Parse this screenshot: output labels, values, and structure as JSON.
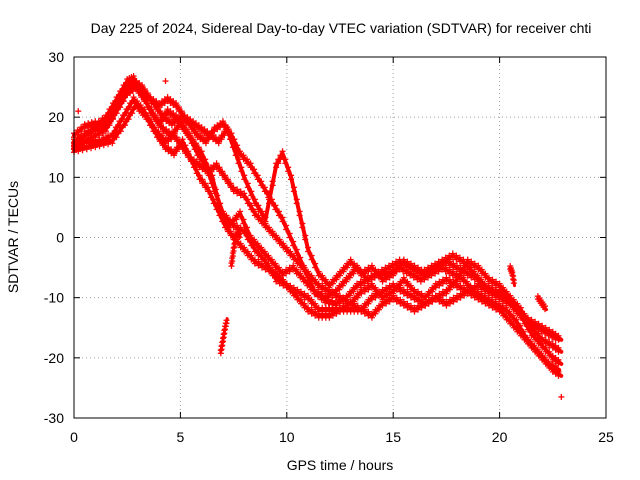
{
  "chart_data": {
    "type": "scatter",
    "title": "Day 225 of 2024, Sidereal Day-to-day VTEC variation (SDTVAR) for receiver chti",
    "xlabel": "GPS time / hours",
    "ylabel": "SDTVAR / TECUs",
    "xlim": [
      0,
      25
    ],
    "ylim": [
      -30,
      30
    ],
    "xticks": [
      0,
      5,
      10,
      15,
      20,
      25
    ],
    "yticks": [
      -30,
      -20,
      -10,
      0,
      10,
      20,
      30
    ],
    "grid": true,
    "marker": "+",
    "color": "#ff0000",
    "series": [
      {
        "name": "trace-1",
        "points": [
          [
            0,
            16
          ],
          [
            0.5,
            17
          ],
          [
            1,
            18.5
          ],
          [
            1.5,
            20
          ],
          [
            2,
            23
          ],
          [
            2.5,
            26
          ],
          [
            2.8,
            26.5
          ],
          [
            3.2,
            24
          ],
          [
            3.6,
            21
          ],
          [
            4,
            19
          ],
          [
            4.4,
            21
          ],
          [
            4.8,
            20
          ],
          [
            5.2,
            18
          ],
          [
            5.6,
            16
          ],
          [
            6,
            14
          ],
          [
            6.5,
            10
          ],
          [
            7,
            3
          ],
          [
            7.3,
            2
          ],
          [
            7.8,
            4
          ],
          [
            8.3,
            0
          ],
          [
            8.8,
            -2
          ],
          [
            9.3,
            -4
          ],
          [
            9.8,
            -6
          ],
          [
            10.3,
            -5
          ],
          [
            10.8,
            -7
          ],
          [
            11.3,
            -9
          ],
          [
            11.8,
            -10.5
          ],
          [
            12.3,
            -11
          ],
          [
            12.8,
            -10
          ],
          [
            13.3,
            -8
          ],
          [
            13.8,
            -7
          ],
          [
            14.3,
            -6
          ],
          [
            14.8,
            -6
          ],
          [
            15.3,
            -5
          ],
          [
            15.8,
            -6
          ],
          [
            16.3,
            -7
          ],
          [
            16.8,
            -6
          ],
          [
            17.3,
            -5
          ],
          [
            17.8,
            -6
          ],
          [
            18.3,
            -7
          ],
          [
            18.8,
            -9
          ],
          [
            19.3,
            -10
          ],
          [
            19.8,
            -11
          ],
          [
            20.3,
            -12
          ],
          [
            20.8,
            -14
          ],
          [
            21.3,
            -17
          ],
          [
            21.8,
            -19
          ],
          [
            22.3,
            -21
          ],
          [
            22.8,
            -22
          ]
        ]
      },
      {
        "name": "trace-2",
        "points": [
          [
            0,
            15
          ],
          [
            0.5,
            16
          ],
          [
            1,
            17
          ],
          [
            1.5,
            18
          ],
          [
            2,
            21
          ],
          [
            2.5,
            24
          ],
          [
            2.9,
            25
          ],
          [
            3.3,
            23
          ],
          [
            3.8,
            20
          ],
          [
            4.2,
            18
          ],
          [
            4.6,
            17
          ],
          [
            5,
            19
          ],
          [
            5.4,
            17
          ],
          [
            5.8,
            14
          ],
          [
            6.2,
            12
          ],
          [
            6.6,
            8
          ],
          [
            7,
            4
          ],
          [
            7.5,
            2
          ],
          [
            8,
            1
          ],
          [
            8.5,
            -2
          ],
          [
            9,
            -4
          ],
          [
            9.5,
            -7
          ],
          [
            10,
            -8
          ],
          [
            10.5,
            -9
          ],
          [
            11,
            -10
          ],
          [
            11.5,
            -12
          ],
          [
            12,
            -12
          ],
          [
            12.5,
            -12
          ],
          [
            13,
            -11
          ],
          [
            13.5,
            -9
          ],
          [
            14,
            -8
          ],
          [
            14.5,
            -10
          ],
          [
            15,
            -9
          ],
          [
            15.5,
            -7
          ],
          [
            16,
            -9
          ],
          [
            16.5,
            -10
          ],
          [
            17,
            -8
          ],
          [
            17.5,
            -7
          ],
          [
            18,
            -8
          ],
          [
            18.5,
            -9
          ],
          [
            19,
            -10
          ],
          [
            19.5,
            -11
          ],
          [
            20,
            -12
          ],
          [
            20.5,
            -14
          ],
          [
            21,
            -16
          ],
          [
            21.5,
            -18
          ],
          [
            22,
            -20
          ],
          [
            22.5,
            -22
          ],
          [
            22.9,
            -23
          ]
        ]
      },
      {
        "name": "trace-3",
        "points": [
          [
            0,
            17
          ],
          [
            0.5,
            18.5
          ],
          [
            1,
            19
          ],
          [
            1.5,
            19
          ],
          [
            2,
            22
          ],
          [
            2.5,
            25
          ],
          [
            2.8,
            26
          ],
          [
            3.2,
            25
          ],
          [
            3.6,
            23
          ],
          [
            4,
            22
          ],
          [
            4.4,
            23
          ],
          [
            4.8,
            22
          ],
          [
            5.2,
            20
          ],
          [
            5.6,
            19
          ],
          [
            6,
            18
          ],
          [
            6.4,
            17
          ],
          [
            6.8,
            16
          ],
          [
            7.2,
            18
          ],
          [
            7.6,
            14
          ],
          [
            8,
            10
          ],
          [
            8.5,
            6
          ],
          [
            9,
            3
          ],
          [
            9.5,
            12
          ],
          [
            9.8,
            14
          ],
          [
            10.2,
            10
          ],
          [
            10.6,
            4
          ],
          [
            11,
            -2
          ],
          [
            11.5,
            -6
          ],
          [
            12,
            -8
          ],
          [
            12.5,
            -6
          ],
          [
            13,
            -4
          ],
          [
            13.5,
            -6
          ],
          [
            14,
            -5
          ],
          [
            14.5,
            -7
          ],
          [
            15,
            -6
          ],
          [
            15.5,
            -4
          ],
          [
            16,
            -5
          ],
          [
            16.5,
            -6
          ],
          [
            17,
            -5
          ],
          [
            17.5,
            -4
          ],
          [
            18,
            -5
          ],
          [
            18.5,
            -6
          ],
          [
            19,
            -7
          ],
          [
            19.5,
            -9
          ],
          [
            20,
            -9
          ],
          [
            20.5,
            -11
          ],
          [
            21,
            -13
          ],
          [
            21.5,
            -14
          ],
          [
            22,
            -15
          ],
          [
            22.5,
            -16
          ],
          [
            22.9,
            -17
          ]
        ]
      },
      {
        "name": "trace-4",
        "points": [
          [
            0,
            15
          ],
          [
            0.6,
            16
          ],
          [
            1.2,
            16
          ],
          [
            1.8,
            17
          ],
          [
            2.3,
            20
          ],
          [
            2.8,
            23
          ],
          [
            3.3,
            21
          ],
          [
            3.8,
            18
          ],
          [
            4.3,
            16
          ],
          [
            4.7,
            17
          ],
          [
            5.1,
            15
          ],
          [
            5.5,
            13
          ],
          [
            5.9,
            12
          ],
          [
            6.3,
            11
          ],
          [
            6.7,
            12
          ],
          [
            7.1,
            10
          ],
          [
            7.5,
            8
          ],
          [
            8,
            7
          ],
          [
            8.5,
            4
          ],
          [
            9,
            2
          ],
          [
            9.5,
            0
          ],
          [
            10,
            -2
          ],
          [
            10.5,
            -4
          ],
          [
            11,
            -6
          ],
          [
            11.5,
            -8
          ],
          [
            12,
            -9
          ],
          [
            12.5,
            -10
          ],
          [
            13,
            -11
          ],
          [
            13.5,
            -12
          ],
          [
            14,
            -10
          ],
          [
            14.5,
            -9
          ],
          [
            15,
            -8
          ],
          [
            15.5,
            -9
          ],
          [
            16,
            -10
          ],
          [
            16.5,
            -11
          ],
          [
            17,
            -10
          ],
          [
            17.5,
            -9
          ],
          [
            18,
            -7
          ],
          [
            18.5,
            -4
          ],
          [
            19,
            -5
          ],
          [
            19.5,
            -7
          ],
          [
            20,
            -8
          ],
          [
            20.5,
            -10
          ],
          [
            21,
            -12
          ],
          [
            21.5,
            -15
          ],
          [
            22,
            -17
          ],
          [
            22.5,
            -18
          ],
          [
            22.9,
            -19
          ]
        ]
      },
      {
        "name": "trace-5",
        "points": [
          [
            0,
            14.5
          ],
          [
            0.6,
            15
          ],
          [
            1.2,
            15.5
          ],
          [
            1.8,
            16
          ],
          [
            2.4,
            19
          ],
          [
            2.9,
            22
          ],
          [
            3.4,
            20
          ],
          [
            3.9,
            17
          ],
          [
            4.3,
            15
          ],
          [
            4.7,
            14
          ],
          [
            5.1,
            16
          ],
          [
            5.5,
            13
          ],
          [
            5.9,
            10
          ],
          [
            6.3,
            8
          ],
          [
            6.7,
            5
          ],
          [
            7.1,
            2
          ],
          [
            7.5,
            0
          ],
          [
            8,
            -2
          ],
          [
            8.5,
            -4
          ],
          [
            9,
            -5
          ],
          [
            9.5,
            -6
          ],
          [
            10,
            -8
          ],
          [
            10.5,
            -10
          ],
          [
            11,
            -12
          ],
          [
            11.5,
            -13
          ],
          [
            12,
            -13
          ],
          [
            12.5,
            -12
          ],
          [
            13,
            -12
          ],
          [
            13.5,
            -12
          ],
          [
            14,
            -13
          ],
          [
            14.5,
            -11
          ],
          [
            15,
            -10
          ],
          [
            15.5,
            -11
          ],
          [
            16,
            -12
          ],
          [
            16.5,
            -11
          ],
          [
            17,
            -10
          ],
          [
            17.5,
            -11
          ],
          [
            18,
            -10
          ],
          [
            18.5,
            -9
          ],
          [
            19,
            -8
          ],
          [
            19.5,
            -9
          ],
          [
            20,
            -10
          ],
          [
            20.5,
            -11
          ],
          [
            21,
            -13
          ],
          [
            21.5,
            -16
          ],
          [
            22,
            -18
          ],
          [
            22.5,
            -20
          ],
          [
            22.9,
            -21
          ]
        ]
      },
      {
        "name": "trace-6",
        "points": [
          [
            0,
            15.5
          ],
          [
            0.5,
            17
          ],
          [
            1,
            18
          ],
          [
            1.5,
            18.5
          ],
          [
            2,
            21
          ],
          [
            2.5,
            24
          ],
          [
            2.9,
            25.5
          ],
          [
            3.3,
            24
          ],
          [
            3.8,
            22
          ],
          [
            4.2,
            20
          ],
          [
            4.6,
            19
          ],
          [
            5,
            20
          ],
          [
            5.4,
            19
          ],
          [
            5.8,
            17
          ],
          [
            6.2,
            16
          ],
          [
            6.6,
            18
          ],
          [
            7,
            19
          ],
          [
            7.4,
            17
          ],
          [
            7.8,
            14
          ],
          [
            8.3,
            12
          ],
          [
            8.8,
            9
          ],
          [
            9.3,
            6
          ],
          [
            9.8,
            3
          ],
          [
            10.3,
            -1
          ],
          [
            10.8,
            -5
          ],
          [
            11.3,
            -9
          ],
          [
            11.8,
            -10
          ],
          [
            12.3,
            -9
          ],
          [
            12.8,
            -7
          ],
          [
            13.3,
            -5
          ],
          [
            13.8,
            -7
          ],
          [
            14.3,
            -6
          ],
          [
            14.8,
            -5
          ],
          [
            15.3,
            -4
          ],
          [
            15.8,
            -5
          ],
          [
            16.3,
            -6
          ],
          [
            16.8,
            -5
          ],
          [
            17.3,
            -4
          ],
          [
            17.8,
            -3
          ],
          [
            18.3,
            -4
          ],
          [
            18.8,
            -6
          ],
          [
            19.3,
            -8
          ],
          [
            19.8,
            -9
          ],
          [
            20.3,
            -10
          ],
          [
            20.8,
            -12
          ],
          [
            21.3,
            -14
          ],
          [
            21.8,
            -15
          ],
          [
            22.3,
            -16
          ],
          [
            22.8,
            -17
          ]
        ]
      }
    ],
    "fragments": [
      {
        "name": "fragment-1",
        "points": [
          [
            6.9,
            -19
          ],
          [
            7.0,
            -17
          ],
          [
            7.1,
            -15
          ],
          [
            7.2,
            -13.5
          ]
        ]
      },
      {
        "name": "fragment-2",
        "points": [
          [
            7.4,
            -4.5
          ],
          [
            7.5,
            -2
          ],
          [
            7.6,
            0
          ],
          [
            7.7,
            1
          ],
          [
            7.8,
            0
          ]
        ]
      },
      {
        "name": "fragment-3",
        "points": [
          [
            20.5,
            -5
          ],
          [
            20.6,
            -6
          ],
          [
            20.7,
            -8
          ]
        ]
      },
      {
        "name": "fragment-4",
        "points": [
          [
            21.8,
            -10
          ],
          [
            22,
            -11
          ],
          [
            22.2,
            -12
          ]
        ]
      }
    ],
    "outliers": [
      [
        22.9,
        -26.5
      ],
      [
        4.3,
        26
      ],
      [
        0.2,
        21
      ]
    ]
  }
}
